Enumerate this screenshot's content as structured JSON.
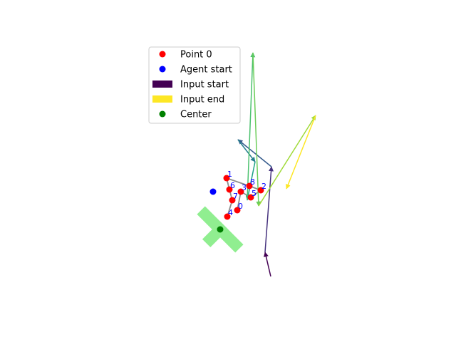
{
  "chart_data": {
    "type": "scatter",
    "grid": false,
    "axes_visible": false,
    "legend": {
      "placement": "upper-left",
      "entries": [
        {
          "label": "Point 0",
          "marker": "circle",
          "color": "#ff0000"
        },
        {
          "label": "Agent start",
          "marker": "circle",
          "color": "#0000ff"
        },
        {
          "label": "Input start",
          "marker": "patch",
          "color": "#440154"
        },
        {
          "label": "Input end",
          "marker": "patch",
          "color": "#fde725"
        },
        {
          "label": "Center",
          "marker": "circle",
          "color": "#008000"
        }
      ]
    },
    "points": [
      {
        "label": "0",
        "x": 333,
        "y": 295
      },
      {
        "label": "1",
        "x": 318,
        "y": 250
      },
      {
        "label": "2",
        "x": 366,
        "y": 267
      },
      {
        "label": "3",
        "x": 338,
        "y": 269
      },
      {
        "label": "4",
        "x": 319,
        "y": 304
      },
      {
        "label": "5",
        "x": 352,
        "y": 277
      },
      {
        "label": "6",
        "x": 322,
        "y": 266
      },
      {
        "label": "7",
        "x": 326,
        "y": 281
      },
      {
        "label": "8",
        "x": 350,
        "y": 261
      }
    ],
    "point_links": [
      [
        4,
        7
      ],
      [
        7,
        6
      ],
      [
        6,
        1
      ],
      [
        1,
        8
      ],
      [
        8,
        2
      ],
      [
        2,
        5
      ],
      [
        5,
        3
      ],
      [
        3,
        0
      ]
    ],
    "agent_start": {
      "x": 299,
      "y": 269
    },
    "center": {
      "x": 309,
      "y": 322
    },
    "center_cross": {
      "color": "#90ee90",
      "angle_deg": 45,
      "arm_length": 38,
      "arm_width": 16
    },
    "input_arrows": [
      {
        "x1": 380,
        "y1": 388,
        "x2": 372,
        "y2": 354,
        "color": "#440154"
      },
      {
        "x1": 372,
        "y1": 354,
        "x2": 381,
        "y2": 234,
        "color": "#46327e"
      },
      {
        "x1": 381,
        "y1": 234,
        "x2": 334,
        "y2": 196,
        "color": "#365c8d"
      },
      {
        "x1": 334,
        "y1": 196,
        "x2": 358,
        "y2": 227,
        "color": "#277f8e"
      },
      {
        "x1": 358,
        "y1": 227,
        "x2": 347,
        "y2": 281,
        "color": "#1fa187"
      },
      {
        "x1": 347,
        "y1": 281,
        "x2": 355,
        "y2": 74,
        "color": "#4ac16d"
      },
      {
        "x1": 355,
        "y1": 74,
        "x2": 363,
        "y2": 289,
        "color": "#6ccd5a"
      },
      {
        "x1": 363,
        "y1": 289,
        "x2": 443,
        "y2": 162,
        "color": "#a0da39"
      },
      {
        "x1": 443,
        "y1": 162,
        "x2": 402,
        "y2": 265,
        "color": "#fde725"
      }
    ]
  }
}
